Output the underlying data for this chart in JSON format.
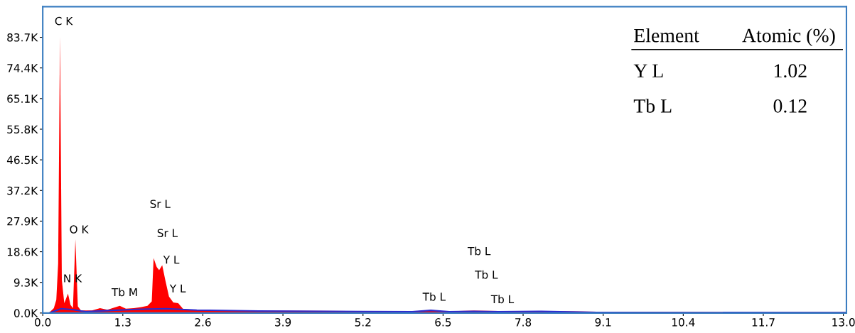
{
  "chart_data": {
    "type": "area",
    "xlim": [
      0,
      13.05
    ],
    "ylim": [
      0,
      93000
    ],
    "xticks": [
      {
        "value": 0,
        "label": "0.0"
      },
      1.3,
      2.6,
      3.9,
      5.2,
      6.5,
      7.8,
      9.1,
      10.4,
      11.7,
      {
        "value": 13,
        "label": "13.0"
      }
    ],
    "yticks": [
      {
        "value": 0,
        "label": "0.0K"
      },
      {
        "value": 9300,
        "label": "9.3K"
      },
      {
        "value": 18600,
        "label": "18.6K"
      },
      {
        "value": 27900,
        "label": "27.9K"
      },
      {
        "value": 37200,
        "label": "37.2K"
      },
      {
        "value": 46500,
        "label": "46.5K"
      },
      {
        "value": 55800,
        "label": "55.8K"
      },
      {
        "value": 65100,
        "label": "65.1K"
      },
      {
        "value": 74400,
        "label": "74.4K"
      },
      {
        "value": 83700,
        "label": "83.7K"
      }
    ],
    "grid": false,
    "series": [
      {
        "color": "#ff0000",
        "x": [
          0.1,
          0.18,
          0.22,
          0.25,
          0.28,
          0.31,
          0.35,
          0.41,
          0.45,
          0.49,
          0.53,
          0.57,
          0.62,
          0.8,
          0.93,
          1.05,
          1.25,
          1.35,
          1.48,
          1.6,
          1.7,
          1.77,
          1.8,
          1.85,
          1.89,
          1.94,
          1.99,
          2.05,
          2.12,
          2.2,
          2.28,
          2.5,
          3.5,
          5.0,
          6.1,
          6.3,
          6.5,
          7.0,
          7.4,
          8.05,
          9.0,
          10.0,
          11.0,
          12.0,
          13.05
        ],
        "values": [
          0,
          1500,
          4000,
          15000,
          84000,
          10000,
          3000,
          5900,
          2500,
          1500,
          22400,
          2000,
          800,
          800,
          1500,
          1000,
          2200,
          1300,
          1500,
          1800,
          2200,
          3500,
          16700,
          14000,
          13000,
          14500,
          10000,
          5000,
          3200,
          3000,
          1200,
          900,
          700,
          600,
          600,
          900,
          500,
          700,
          600,
          600,
          400,
          400,
          300,
          300,
          300
        ]
      },
      {
        "type": "line",
        "color": "#2b2bd0",
        "x": [
          0.1,
          0.3,
          0.5,
          0.7,
          1.0,
          1.5,
          2.0,
          2.5,
          3.5,
          6.0,
          6.3,
          6.6,
          7.0,
          7.4,
          8.05,
          9.0,
          13.05
        ],
        "values": [
          0,
          1300,
          1000,
          400,
          700,
          1100,
          1300,
          900,
          600,
          400,
          800,
          400,
          500,
          400,
          500,
          200,
          100
        ]
      }
    ],
    "annotations": [
      "C K",
      "N K",
      "O K",
      "Tb M",
      "Sr L",
      "Sr L",
      "Y L",
      "Y L",
      "Tb L",
      "Tb L",
      "Tb L",
      "Tb L",
      "Element",
      "Atomic (%)",
      "Y L",
      "1.02",
      "Tb L",
      "0.12"
    ]
  }
}
